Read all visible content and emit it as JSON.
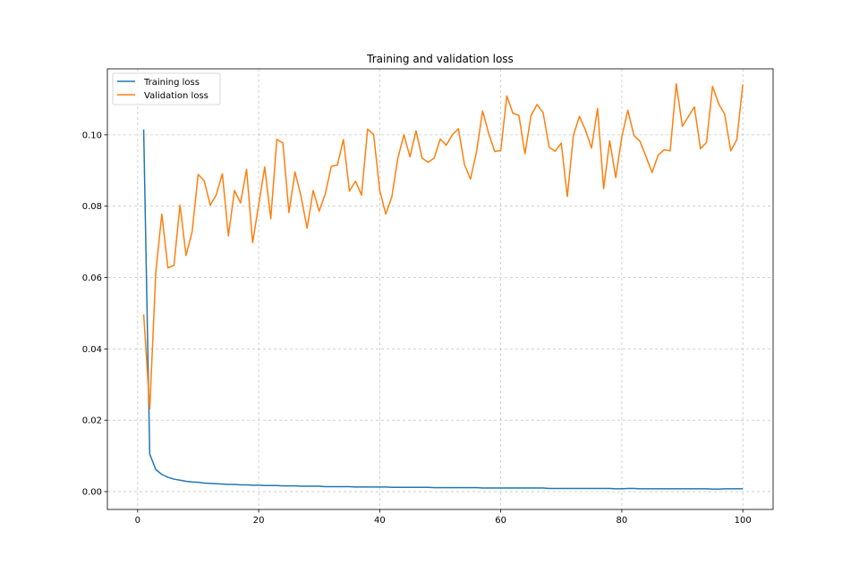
{
  "chart_data": {
    "type": "line",
    "title": "Training and validation loss",
    "xlabel": "",
    "ylabel": "",
    "xlim": [
      -5,
      105
    ],
    "ylim": [
      -0.005,
      0.1185
    ],
    "xticks": [
      0,
      20,
      40,
      60,
      80,
      100
    ],
    "yticks": [
      0.0,
      0.02,
      0.04,
      0.06,
      0.08,
      0.1
    ],
    "ytick_labels": [
      "0.00",
      "0.02",
      "0.04",
      "0.06",
      "0.08",
      "0.10"
    ],
    "xtick_labels": [
      "0",
      "20",
      "40",
      "60",
      "80",
      "100"
    ],
    "grid": true,
    "legend_position": "top-left",
    "x": [
      1,
      2,
      3,
      4,
      5,
      6,
      7,
      8,
      9,
      10,
      11,
      12,
      13,
      14,
      15,
      16,
      17,
      18,
      19,
      20,
      21,
      22,
      23,
      24,
      25,
      26,
      27,
      28,
      29,
      30,
      31,
      32,
      33,
      34,
      35,
      36,
      37,
      38,
      39,
      40,
      41,
      42,
      43,
      44,
      45,
      46,
      47,
      48,
      49,
      50,
      51,
      52,
      53,
      54,
      55,
      56,
      57,
      58,
      59,
      60,
      61,
      62,
      63,
      64,
      65,
      66,
      67,
      68,
      69,
      70,
      71,
      72,
      73,
      74,
      75,
      76,
      77,
      78,
      79,
      80,
      81,
      82,
      83,
      84,
      85,
      86,
      87,
      88,
      89,
      90,
      91,
      92,
      93,
      94,
      95,
      96,
      97,
      98,
      99,
      100
    ],
    "series": [
      {
        "name": "Training loss",
        "color": "#1f77b4",
        "values": [
          0.1015,
          0.0105,
          0.0062,
          0.0048,
          0.004,
          0.0035,
          0.0032,
          0.0029,
          0.0027,
          0.0026,
          0.0024,
          0.0023,
          0.0022,
          0.0021,
          0.002,
          0.002,
          0.0019,
          0.0019,
          0.0018,
          0.0018,
          0.0017,
          0.0017,
          0.0017,
          0.0016,
          0.0016,
          0.0016,
          0.0015,
          0.0015,
          0.0015,
          0.0015,
          0.0014,
          0.0014,
          0.0014,
          0.0014,
          0.0014,
          0.0013,
          0.0013,
          0.0013,
          0.0013,
          0.0013,
          0.0013,
          0.0012,
          0.0012,
          0.0012,
          0.0012,
          0.0012,
          0.0012,
          0.0012,
          0.0011,
          0.0011,
          0.0011,
          0.0011,
          0.0011,
          0.0011,
          0.0011,
          0.0011,
          0.001,
          0.001,
          0.001,
          0.001,
          0.001,
          0.001,
          0.001,
          0.001,
          0.001,
          0.001,
          0.001,
          0.0009,
          0.0009,
          0.0009,
          0.0009,
          0.0009,
          0.0009,
          0.0009,
          0.0009,
          0.0009,
          0.0009,
          0.0009,
          0.0008,
          0.0008,
          0.0009,
          0.0009,
          0.0008,
          0.0008,
          0.0008,
          0.0008,
          0.0008,
          0.0008,
          0.0008,
          0.0008,
          0.0008,
          0.0008,
          0.0008,
          0.0008,
          0.0007,
          0.0007,
          0.0008,
          0.0008,
          0.0008,
          0.0008
        ]
      },
      {
        "name": "Validation loss",
        "color": "#ff7f0e",
        "values": [
          0.0497,
          0.0232,
          0.0615,
          0.0778,
          0.0627,
          0.0634,
          0.0803,
          0.0662,
          0.0728,
          0.0889,
          0.0871,
          0.0803,
          0.0832,
          0.0891,
          0.0717,
          0.0844,
          0.0809,
          0.0903,
          0.0698,
          0.0804,
          0.091,
          0.0765,
          0.0987,
          0.0977,
          0.0782,
          0.0896,
          0.0828,
          0.0738,
          0.0844,
          0.0786,
          0.0834,
          0.0912,
          0.0915,
          0.0987,
          0.0842,
          0.087,
          0.0831,
          0.1016,
          0.1001,
          0.0844,
          0.0778,
          0.0826,
          0.0935,
          0.1,
          0.0938,
          0.1011,
          0.0935,
          0.0923,
          0.0935,
          0.0988,
          0.0971,
          0.1,
          0.1017,
          0.0917,
          0.0876,
          0.0953,
          0.1067,
          0.1004,
          0.0953,
          0.0956,
          0.1109,
          0.1061,
          0.1054,
          0.0947,
          0.1054,
          0.1085,
          0.1062,
          0.0965,
          0.0954,
          0.0977,
          0.0827,
          0.0998,
          0.1052,
          0.1013,
          0.0963,
          0.1074,
          0.0849,
          0.0983,
          0.088,
          0.0994,
          0.1069,
          0.0998,
          0.0982,
          0.0939,
          0.0894,
          0.0943,
          0.0958,
          0.0955,
          0.1143,
          0.1024,
          0.1051,
          0.1078,
          0.0961,
          0.0979,
          0.1136,
          0.1087,
          0.1058,
          0.0955,
          0.0986,
          0.1141
        ]
      }
    ]
  }
}
